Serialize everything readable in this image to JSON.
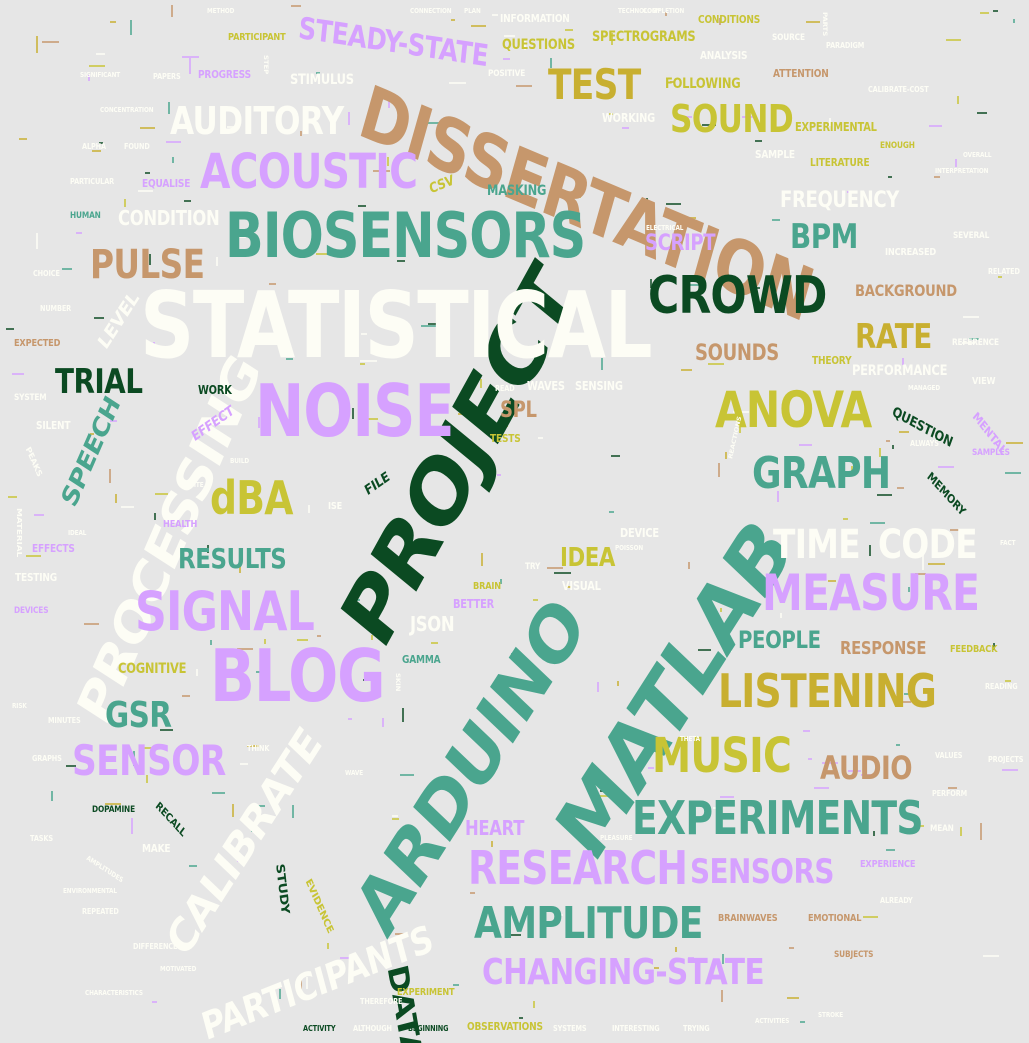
{
  "palette": {
    "background": "#e6e6e6",
    "white": "#fdfdf5",
    "teal": "#4aa58e",
    "dark_green": "#0b4a22",
    "lavender": "#d6a1ff",
    "olive": "#c8c435",
    "tan": "#c6976c",
    "gold": "#c8af30"
  },
  "words": [
    {
      "text": "PROJECT",
      "color": "dark_green"
    },
    {
      "text": "ARDUINO",
      "color": "teal"
    },
    {
      "text": "MATLAB",
      "color": "teal"
    },
    {
      "text": "STATISTICAL",
      "color": "white"
    },
    {
      "text": "DISSERTATION",
      "color": "tan"
    },
    {
      "text": "BIOSENSORS",
      "color": "teal"
    },
    {
      "text": "NOISE",
      "color": "lavender"
    },
    {
      "text": "BLOG",
      "color": "lavender"
    },
    {
      "text": "PROCESSING",
      "color": "white"
    },
    {
      "text": "CROWD",
      "color": "dark_green"
    },
    {
      "text": "SIGNAL",
      "color": "lavender"
    },
    {
      "text": "ANOVA",
      "color": "olive"
    },
    {
      "text": "MEASURE",
      "color": "lavender"
    },
    {
      "text": "CALIBRATE",
      "color": "white"
    },
    {
      "text": "ACOUSTIC",
      "color": "lavender"
    },
    {
      "text": "EXPERIMENTS",
      "color": "teal"
    },
    {
      "text": "RESEARCH",
      "color": "lavender"
    },
    {
      "text": "LISTENING",
      "color": "gold"
    },
    {
      "text": "GRAPH",
      "color": "teal"
    },
    {
      "text": "MUSIC",
      "color": "olive"
    },
    {
      "text": "AMPLITUDE",
      "color": "teal"
    },
    {
      "text": "PARTICIPANTS",
      "color": "white"
    },
    {
      "text": "CHANGING-STATE",
      "color": "lavender"
    },
    {
      "text": "SENSOR",
      "color": "lavender"
    },
    {
      "text": "dBA",
      "color": "olive"
    },
    {
      "text": "TIME",
      "color": "white"
    },
    {
      "text": "CODE",
      "color": "white"
    },
    {
      "text": "AUDITORY",
      "color": "white"
    },
    {
      "text": "TEST",
      "color": "gold"
    },
    {
      "text": "SOUND",
      "color": "olive"
    },
    {
      "text": "STEADY-STATE",
      "color": "lavender"
    },
    {
      "text": "PULSE",
      "color": "tan"
    },
    {
      "text": "TRIAL",
      "color": "dark_green"
    },
    {
      "text": "RATE",
      "color": "gold"
    },
    {
      "text": "SENSORS",
      "color": "lavender"
    },
    {
      "text": "GSR",
      "color": "teal"
    },
    {
      "text": "AUDIO",
      "color": "tan"
    },
    {
      "text": "RESULTS",
      "color": "teal"
    },
    {
      "text": "DATA",
      "color": "dark_green"
    },
    {
      "text": "BPM",
      "color": "teal"
    },
    {
      "text": "SPEECH",
      "color": "teal"
    },
    {
      "text": "CONDITION",
      "color": "white"
    },
    {
      "text": "SCRIPT",
      "color": "lavender"
    },
    {
      "text": "FREQUENCY",
      "color": "white"
    },
    {
      "text": "SOUNDS",
      "color": "tan"
    },
    {
      "text": "BACKGROUND",
      "color": "tan"
    },
    {
      "text": "IDEA",
      "color": "olive"
    },
    {
      "text": "PEOPLE",
      "color": "teal"
    },
    {
      "text": "RESPONSE",
      "color": "tan"
    },
    {
      "text": "HEART",
      "color": "lavender"
    },
    {
      "text": "SPL",
      "color": "tan"
    },
    {
      "text": "JSON",
      "color": "white"
    },
    {
      "text": "LEVEL",
      "color": "white"
    },
    {
      "text": "SPECTROGRAMS",
      "color": "olive"
    },
    {
      "text": "QUESTIONS",
      "color": "olive"
    },
    {
      "text": "INFORMATION",
      "color": "white"
    },
    {
      "text": "FOLLOWING",
      "color": "olive"
    },
    {
      "text": "STIMULUS",
      "color": "white"
    },
    {
      "text": "WORKING",
      "color": "white"
    },
    {
      "text": "CSV",
      "color": "olive"
    },
    {
      "text": "MASKING",
      "color": "teal"
    },
    {
      "text": "EXPERIMENTAL",
      "color": "olive"
    },
    {
      "text": "SAMPLE",
      "color": "white"
    },
    {
      "text": "LITERATURE",
      "color": "olive"
    },
    {
      "text": "ANALYSIS",
      "color": "white"
    },
    {
      "text": "ATTENTION",
      "color": "tan"
    },
    {
      "text": "CONDITIONS",
      "color": "olive"
    },
    {
      "text": "PERFORMANCE",
      "color": "white"
    },
    {
      "text": "THEORY",
      "color": "olive"
    },
    {
      "text": "REFERENCE",
      "color": "white"
    },
    {
      "text": "INCREASED",
      "color": "white"
    },
    {
      "text": "QUESTION",
      "color": "dark_green"
    },
    {
      "text": "MEMORY",
      "color": "dark_green"
    },
    {
      "text": "SENSING",
      "color": "white"
    },
    {
      "text": "WAVES",
      "color": "white"
    },
    {
      "text": "TESTS",
      "color": "olive"
    },
    {
      "text": "WORK",
      "color": "dark_green"
    },
    {
      "text": "FILE",
      "color": "dark_green"
    },
    {
      "text": "EFFECT",
      "color": "lavender"
    },
    {
      "text": "EFFECTS",
      "color": "lavender"
    },
    {
      "text": "TESTING",
      "color": "white"
    },
    {
      "text": "COGNITIVE",
      "color": "olive"
    },
    {
      "text": "BETTER",
      "color": "lavender"
    },
    {
      "text": "VISUAL",
      "color": "white"
    },
    {
      "text": "DEVICE",
      "color": "white"
    },
    {
      "text": "GAMMA",
      "color": "teal"
    },
    {
      "text": "FEEDBACK",
      "color": "olive"
    },
    {
      "text": "DOPAMINE",
      "color": "dark_green"
    },
    {
      "text": "RECALL",
      "color": "dark_green"
    },
    {
      "text": "MAKE",
      "color": "white"
    },
    {
      "text": "STUDY",
      "color": "dark_green"
    },
    {
      "text": "EVIDENCE",
      "color": "olive"
    },
    {
      "text": "BRAINWAVES",
      "color": "tan"
    },
    {
      "text": "EMOTIONAL",
      "color": "tan"
    },
    {
      "text": "EXPERIENCE",
      "color": "lavender"
    },
    {
      "text": "OBSERVATIONS",
      "color": "olive"
    },
    {
      "text": "ACTIVITY",
      "color": "dark_green"
    },
    {
      "text": "BEGINNING",
      "color": "dark_green"
    },
    {
      "text": "EXPERIMENT",
      "color": "olive"
    },
    {
      "text": "SUBJECTS",
      "color": "tan"
    },
    {
      "text": "PROGRESS",
      "color": "lavender"
    },
    {
      "text": "POSITIVE",
      "color": "white"
    },
    {
      "text": "PARTICIPANT",
      "color": "olive"
    },
    {
      "text": "HUMAN",
      "color": "teal"
    },
    {
      "text": "EQUALISE",
      "color": "lavender"
    },
    {
      "text": "SEVERAL",
      "color": "white"
    },
    {
      "text": "RELATED",
      "color": "white"
    },
    {
      "text": "VIEW",
      "color": "white"
    },
    {
      "text": "MENTAL",
      "color": "lavender"
    },
    {
      "text": "SAMPLES",
      "color": "lavender"
    },
    {
      "text": "ENOUGH",
      "color": "olive"
    },
    {
      "text": "SILENT",
      "color": "white"
    },
    {
      "text": "SYSTEM",
      "color": "white"
    },
    {
      "text": "EXPECTED",
      "color": "tan"
    },
    {
      "text": "HEALTH",
      "color": "lavender"
    },
    {
      "text": "BRAIN",
      "color": "olive"
    },
    {
      "text": "DEVICES",
      "color": "lavender"
    },
    {
      "text": "MINUTES",
      "color": "white"
    },
    {
      "text": "MEAN",
      "color": "white"
    },
    {
      "text": "PERFORM",
      "color": "white"
    },
    {
      "text": "PROJECTS",
      "color": "white"
    },
    {
      "text": "READING",
      "color": "white"
    },
    {
      "text": "ALREADY",
      "color": "white"
    },
    {
      "text": "PEAKS",
      "color": "white"
    },
    {
      "text": "REPEATED",
      "color": "white"
    },
    {
      "text": "TASKS",
      "color": "white"
    },
    {
      "text": "TRY",
      "color": "white"
    },
    {
      "text": "CALIBRATE-COST",
      "color": "white"
    },
    {
      "text": "ISE",
      "color": "white"
    },
    {
      "text": "SOURCE",
      "color": "white"
    },
    {
      "text": "PARADIGM",
      "color": "white"
    },
    {
      "text": "GRAPHS",
      "color": "white"
    },
    {
      "text": "THINK",
      "color": "white"
    },
    {
      "text": "VALUES",
      "color": "white"
    },
    {
      "text": "ALWAYS",
      "color": "white"
    },
    {
      "text": "DIFFERENCE",
      "color": "white"
    },
    {
      "text": "THEREFORE",
      "color": "white"
    },
    {
      "text": "INTERESTING",
      "color": "white"
    },
    {
      "text": "TRYING",
      "color": "white"
    },
    {
      "text": "ALTHOUGH",
      "color": "white"
    },
    {
      "text": "SYSTEMS",
      "color": "white"
    },
    {
      "text": "ACTIVITIES",
      "color": "white"
    },
    {
      "text": "NUMBER",
      "color": "white"
    },
    {
      "text": "CHOICE",
      "color": "white"
    },
    {
      "text": "READ",
      "color": "white"
    },
    {
      "text": "THETA",
      "color": "white"
    },
    {
      "text": "FACT",
      "color": "white"
    },
    {
      "text": "TECHNOLOGY",
      "color": "white"
    },
    {
      "text": "COMPLETION",
      "color": "white"
    },
    {
      "text": "CONNECTION",
      "color": "white"
    },
    {
      "text": "CONCENTRATION",
      "color": "white"
    },
    {
      "text": "INTERPRETATION",
      "color": "white"
    },
    {
      "text": "PARTICULAR",
      "color": "white"
    },
    {
      "text": "OVERALL",
      "color": "white"
    },
    {
      "text": "ELECTRICAL",
      "color": "white"
    },
    {
      "text": "REACTIONS",
      "color": "white"
    },
    {
      "text": "POISSON",
      "color": "white"
    },
    {
      "text": "MANAGED",
      "color": "white"
    },
    {
      "text": "PLEASURE",
      "color": "white"
    },
    {
      "text": "AMPLITUDES",
      "color": "white"
    },
    {
      "text": "ENVIRONMENTAL",
      "color": "white"
    },
    {
      "text": "CHARACTERISTICS",
      "color": "white"
    },
    {
      "text": "FOUND",
      "color": "white"
    },
    {
      "text": "ALPHA",
      "color": "white"
    },
    {
      "text": "STROKE",
      "color": "white"
    },
    {
      "text": "PAPERS",
      "color": "white"
    },
    {
      "text": "METHOD",
      "color": "white"
    },
    {
      "text": "PLAN",
      "color": "white"
    },
    {
      "text": "PARTS",
      "color": "white"
    },
    {
      "text": "SIGNIFICANT",
      "color": "white"
    },
    {
      "text": "STEP",
      "color": "white"
    },
    {
      "text": "MATERIAL",
      "color": "white"
    },
    {
      "text": "WHITE",
      "color": "white"
    },
    {
      "text": "BUILD",
      "color": "white"
    },
    {
      "text": "SKIN",
      "color": "white"
    },
    {
      "text": "WAVE",
      "color": "white"
    },
    {
      "text": "MOTIVATED",
      "color": "white"
    },
    {
      "text": "IDEAL",
      "color": "white"
    },
    {
      "text": "RISK",
      "color": "white"
    }
  ]
}
